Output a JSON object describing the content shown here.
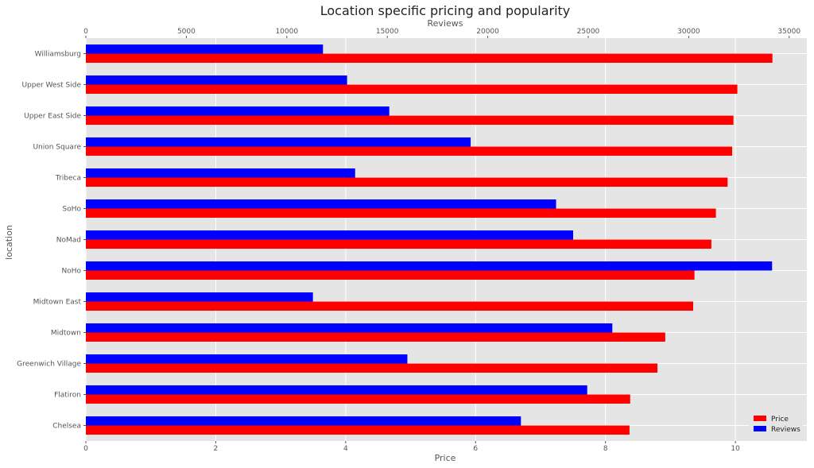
{
  "chart_data": {
    "type": "bar",
    "orientation": "horizontal",
    "title": "Location specific pricing and popularity",
    "ylabel": "location",
    "categories": [
      "Chelsea",
      "Flatiron",
      "Greenwich Village",
      "Midtown",
      "Midtown East",
      "NoHo",
      "NoMad",
      "SoHo",
      "Tribeca",
      "Union Square",
      "Upper East Side",
      "Upper West Side",
      "Williamsburg"
    ],
    "series": [
      {
        "name": "Price",
        "color": "#ff0000",
        "axis": "bottom",
        "values": [
          8.37,
          8.38,
          8.8,
          8.92,
          9.35,
          9.37,
          9.63,
          9.7,
          9.88,
          9.95,
          9.97,
          10.03,
          10.57
        ]
      },
      {
        "name": "Reviews",
        "color": "#0000ff",
        "axis": "top",
        "values": [
          21650,
          24950,
          16000,
          26200,
          11300,
          34150,
          24250,
          23400,
          13400,
          19150,
          15100,
          13000,
          11800
        ]
      }
    ],
    "x_bottom": {
      "label": "Price",
      "lim": [
        0,
        11.1
      ],
      "ticks": [
        0,
        2,
        4,
        6,
        8,
        10
      ],
      "tick_labels": [
        "0",
        "2",
        "4",
        "6",
        "8",
        "10"
      ]
    },
    "x_top": {
      "label": "Reviews",
      "lim": [
        0,
        35880
      ],
      "ticks": [
        0,
        5000,
        10000,
        15000,
        20000,
        25000,
        30000,
        35000
      ],
      "tick_labels": [
        "0",
        "5000",
        "10000",
        "15000",
        "20000",
        "25000",
        "30000",
        "35000"
      ]
    },
    "grid": true,
    "legend": {
      "position": "bottom-right",
      "entries": [
        "Price",
        "Reviews"
      ]
    },
    "colors": {
      "plot_background": "#e5e5e5",
      "grid": "#ffffff",
      "price": "#ff0000",
      "reviews": "#0000ff"
    }
  }
}
